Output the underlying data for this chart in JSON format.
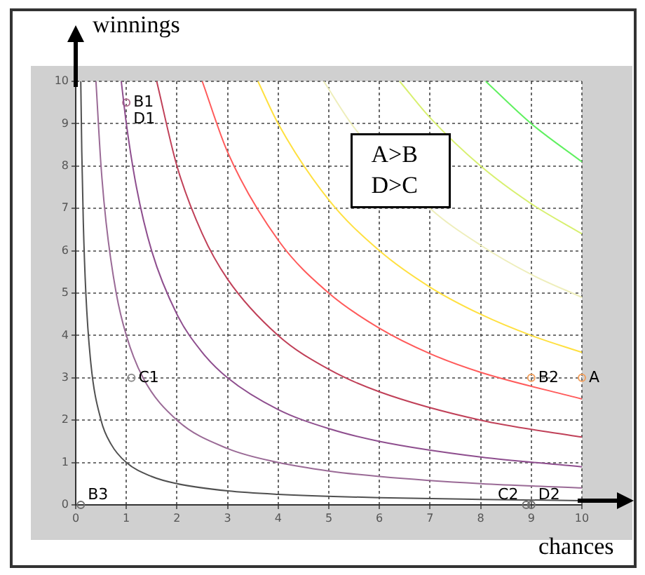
{
  "chart_data": {
    "type": "line",
    "xlabel": "chances",
    "ylabel": "winnings",
    "xlim": [
      0,
      10
    ],
    "ylim": [
      0,
      10
    ],
    "xticks": [
      0,
      1,
      2,
      3,
      4,
      5,
      6,
      7,
      8,
      9,
      10
    ],
    "yticks": [
      0,
      1,
      2,
      3,
      4,
      5,
      6,
      7,
      8,
      9,
      10
    ],
    "grid": true,
    "legend": false,
    "line_style": "solid",
    "series": [
      {
        "type": "line",
        "color": "#505050",
        "x": [
          0.1,
          0.12,
          0.15,
          0.2,
          0.3,
          0.5,
          0.7,
          1,
          1.5,
          2,
          3,
          4,
          6,
          8,
          10
        ],
        "values": [
          10,
          8.33,
          6.67,
          5,
          3.33,
          2,
          1.43,
          1,
          0.67,
          0.5,
          0.33,
          0.25,
          0.17,
          0.13,
          0.1
        ]
      },
      {
        "type": "line",
        "color": "#9a6a96",
        "x": [
          0.4,
          0.5,
          0.6,
          0.8,
          1,
          1.33,
          2,
          3,
          4,
          5,
          6,
          8,
          10
        ],
        "values": [
          10,
          8,
          6.67,
          5,
          4,
          3,
          2,
          1.33,
          1,
          0.8,
          0.67,
          0.5,
          0.4
        ]
      },
      {
        "type": "line",
        "color": "#8e4e8e",
        "x": [
          0.9,
          1,
          1.2,
          1.5,
          2,
          2.5,
          3,
          4,
          5,
          6,
          8,
          10
        ],
        "values": [
          10,
          9,
          7.5,
          6,
          4.5,
          3.6,
          3,
          2.25,
          1.8,
          1.5,
          1.13,
          0.9
        ]
      },
      {
        "type": "line",
        "color": "#c04058",
        "x": [
          1.6,
          2,
          2.5,
          3,
          4,
          5,
          6,
          8,
          10
        ],
        "values": [
          10,
          8,
          6.4,
          5.33,
          4,
          3.2,
          2.67,
          2,
          1.6
        ]
      },
      {
        "type": "line",
        "color": "#ff5a5a",
        "x": [
          2.5,
          3,
          4,
          5,
          6,
          7,
          8,
          10
        ],
        "values": [
          10,
          8.33,
          6.25,
          5,
          4.17,
          3.57,
          3.13,
          2.5
        ]
      },
      {
        "type": "line",
        "color": "#ffe040",
        "x": [
          3.6,
          4,
          5,
          6,
          7,
          8,
          9,
          10
        ],
        "values": [
          10,
          9,
          7.2,
          6,
          5.14,
          4.5,
          4,
          3.6
        ]
      },
      {
        "type": "line",
        "color": "#eeeebb",
        "x": [
          4.9,
          5.5,
          6,
          7,
          8,
          9,
          10
        ],
        "values": [
          10,
          8.91,
          null,
          7,
          6.13,
          5.44,
          4.9
        ]
      },
      {
        "type": "line",
        "color": "#d8f070",
        "x": [
          6.4,
          7,
          8,
          9,
          10
        ],
        "values": [
          10,
          9.14,
          8,
          7.11,
          6.4
        ]
      },
      {
        "type": "line",
        "color": "#60f060",
        "x": [
          8.1,
          9,
          10
        ],
        "values": [
          10,
          9,
          8.1
        ]
      },
      {
        "type": "scatter",
        "marker": "circle",
        "x": [
          10,
          9,
          1,
          1.1,
          0.1,
          8.9,
          9
        ],
        "values": [
          3,
          3,
          9.5,
          3,
          0,
          0,
          0
        ],
        "colors": [
          "#f0a060",
          "#f0a060",
          "#b07090",
          "#909090",
          "#707070",
          "#707070",
          "#707070"
        ]
      }
    ],
    "annotations": [
      "A>B",
      "D>C",
      {
        "text": "A",
        "x": 10,
        "y": 3
      },
      {
        "text": "B2",
        "x": 9,
        "y": 3
      },
      {
        "text": "B1",
        "x": 1,
        "y": 9.5
      },
      {
        "text": "D1",
        "x": 1,
        "y": 9.1
      },
      {
        "text": "C1",
        "x": 1.1,
        "y": 3
      },
      {
        "text": "B3",
        "x": 0.1,
        "y": 0
      },
      {
        "text": "C2",
        "x": 8.2,
        "y": 0
      },
      {
        "text": "D2",
        "x": 9,
        "y": 0
      }
    ]
  }
}
